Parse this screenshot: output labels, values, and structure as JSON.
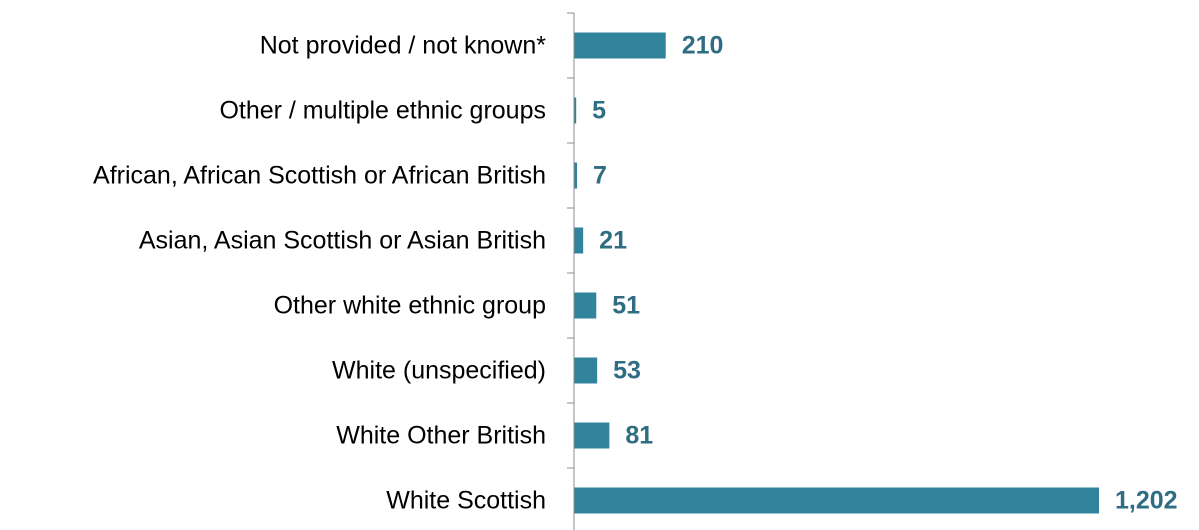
{
  "chart_data": {
    "type": "bar",
    "orientation": "horizontal",
    "categories": [
      "Not provided / not known*",
      "Other / multiple ethnic groups",
      "African, African Scottish or African British",
      "Asian, Asian Scottish or Asian British",
      "Other white ethnic group",
      "White (unspecified)",
      "White Other British",
      "White Scottish"
    ],
    "values": [
      210,
      5,
      7,
      21,
      51,
      53,
      81,
      1202
    ],
    "value_labels": [
      "210",
      "5",
      "7",
      "21",
      "51",
      "53",
      "81",
      "1,202"
    ],
    "xlim": [
      0,
      1202
    ],
    "grid": false,
    "legend": "none",
    "bar_color": "#31849b",
    "label_color": "#2e6d82"
  }
}
